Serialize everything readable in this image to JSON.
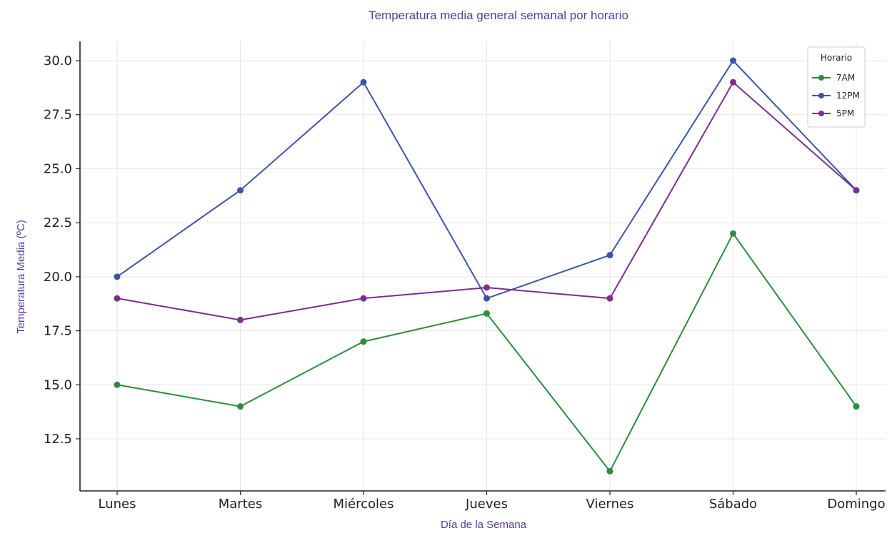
{
  "chart_data": {
    "type": "line",
    "title": "Temperatura media general semanal por horario",
    "xlabel": "Día de la Semana",
    "ylabel": "Temperatura Media (ºC)",
    "categories": [
      "Lunes",
      "Martes",
      "Miércoles",
      "Jueves",
      "Viernes",
      "Sábado",
      "Domingo"
    ],
    "ylim": [
      10.0,
      31.0
    ],
    "yticks": [
      "12.5",
      "15.0",
      "17.5",
      "20.0",
      "22.5",
      "25.0",
      "27.5",
      "30.0"
    ],
    "grid": true,
    "legend": {
      "title": "Horario",
      "placement": "top-right"
    },
    "series": [
      {
        "name": "7AM",
        "color": "#2e8b3e",
        "values": [
          15.0,
          14.0,
          17.0,
          18.3,
          11.0,
          22.0,
          14.0
        ]
      },
      {
        "name": "12PM",
        "color": "#3b55a8",
        "values": [
          20.0,
          24.0,
          29.0,
          19.0,
          21.0,
          30.0,
          24.0
        ]
      },
      {
        "name": "5PM",
        "color": "#7b2f8e",
        "values": [
          19.0,
          18.0,
          19.0,
          19.5,
          19.0,
          29.0,
          24.0
        ]
      }
    ]
  }
}
